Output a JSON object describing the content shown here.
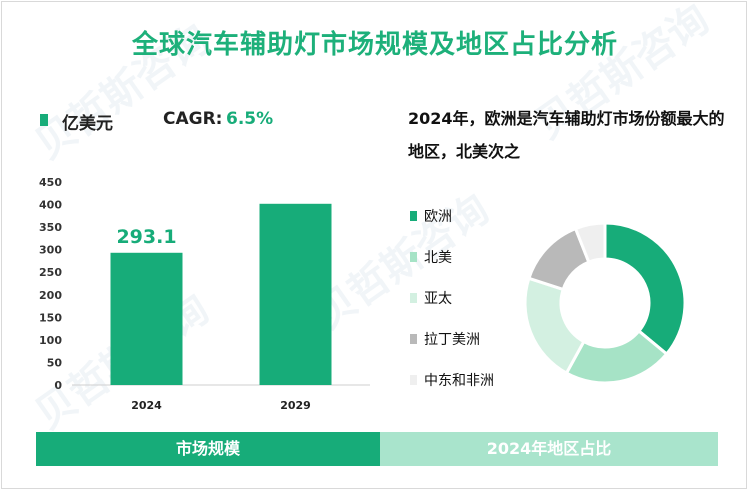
{
  "title": "全球汽车辅助灯市场规模及地区占比分析",
  "unit_label": "亿美元",
  "cagr_label": "CAGR:",
  "cagr_value": "6.5%",
  "headline": "2024年，欧洲是汽车辅助灯市场份额最大的地区，北美次之",
  "footer": {
    "left": "市场规模",
    "right": "2024年地区占比"
  },
  "watermark": "贝哲斯咨询",
  "colors": {
    "brand": "#1db07a",
    "bar": "#17ac79",
    "footer_right": "#a9e4cc"
  },
  "chart_data": [
    {
      "type": "bar",
      "title": "市场规模",
      "categories": [
        "2024",
        "2029"
      ],
      "values": [
        293.1,
        401.7
      ],
      "data_labels": [
        "293.1",
        ""
      ],
      "yticks": [
        0,
        50,
        100,
        150,
        200,
        250,
        300,
        350,
        400,
        450
      ],
      "ylim": [
        0,
        450
      ],
      "xlabel": "",
      "ylabel": "亿美元",
      "grid": false
    },
    {
      "type": "pie",
      "style": "donut",
      "title": "2024年地区占比",
      "labels": [
        "欧洲",
        "北美",
        "亚太",
        "拉丁美洲",
        "中东和非洲"
      ],
      "values": [
        36,
        22,
        22,
        14,
        6
      ],
      "colors": [
        "#17ac79",
        "#a6e3c6",
        "#d3f0e1",
        "#b9b9b9",
        "#efefef"
      ],
      "legend_position": "left"
    }
  ]
}
